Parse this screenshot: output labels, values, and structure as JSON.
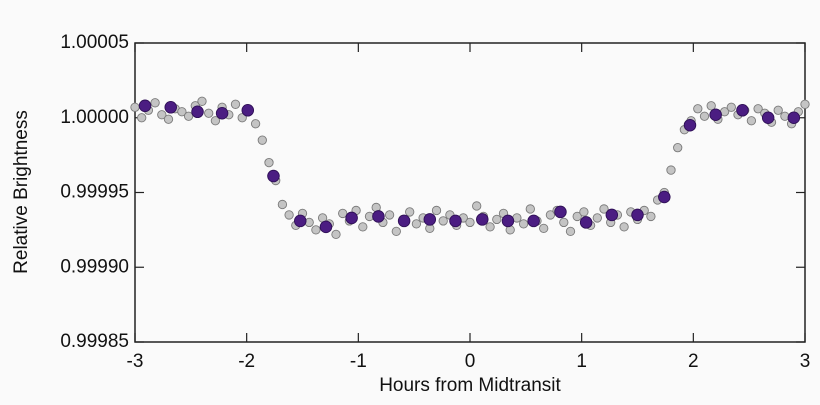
{
  "chart_data": {
    "type": "scatter",
    "xlabel": "Hours from Midtransit",
    "ylabel": "Relative Brightness",
    "xlim": [
      -3,
      3
    ],
    "xticks": [
      -3,
      -2,
      -1,
      0,
      1,
      2,
      3
    ],
    "ylim": [
      0.99985,
      1.00005
    ],
    "yticks": [
      0.99985,
      {
        "value": 0.9999,
        "label": "0.99990"
      },
      0.99995,
      {
        "value": 1,
        "label": "1.00000"
      },
      1.00005
    ],
    "series": [
      {
        "color": "#c4c4c4",
        "edge": "#7a7a7a",
        "x": [
          -3.0,
          -2.94,
          -2.88,
          -2.82,
          -2.76,
          -2.7,
          -2.64,
          -2.58,
          -2.52,
          -2.46,
          -2.4,
          -2.34,
          -2.28,
          -2.22,
          -2.16,
          -2.1,
          -2.04,
          -1.98,
          -1.92,
          -1.86,
          -1.8,
          -1.74,
          -1.68,
          -1.62,
          -1.56,
          -1.5,
          -1.44,
          -1.38,
          -1.32,
          -1.26,
          -1.2,
          -1.14,
          -1.08,
          -1.02,
          -0.96,
          -0.9,
          -0.84,
          -0.78,
          -0.72,
          -0.66,
          -0.6,
          -0.54,
          -0.48,
          -0.42,
          -0.36,
          -0.3,
          -0.24,
          -0.18,
          -0.12,
          -0.06,
          0.0,
          0.06,
          0.12,
          0.18,
          0.24,
          0.3,
          0.36,
          0.42,
          0.48,
          0.54,
          0.6,
          0.66,
          0.72,
          0.78,
          0.84,
          0.9,
          0.96,
          1.02,
          1.08,
          1.14,
          1.2,
          1.26,
          1.32,
          1.38,
          1.44,
          1.5,
          1.56,
          1.62,
          1.68,
          1.74,
          1.8,
          1.86,
          1.92,
          1.98,
          2.04,
          2.1,
          2.16,
          2.22,
          2.28,
          2.34,
          2.4,
          2.46,
          2.52,
          2.58,
          2.64,
          2.7,
          2.76,
          2.82,
          2.88,
          2.94,
          3.0
        ],
        "values": [
          1.000007,
          1.0,
          1.000005,
          1.00001,
          1.000002,
          0.999999,
          1.000006,
          1.000004,
          1.000001,
          1.000008,
          1.000011,
          1.000003,
          0.999998,
          1.000007,
          1.000002,
          1.000009,
          1.0,
          1.000005,
          0.999996,
          0.999985,
          0.99997,
          0.999958,
          0.999942,
          0.999935,
          0.999928,
          0.999936,
          0.99993,
          0.999925,
          0.999933,
          0.999929,
          0.999922,
          0.999936,
          0.999931,
          0.999938,
          0.999927,
          0.999934,
          0.99994,
          0.99993,
          0.999935,
          0.999924,
          0.999932,
          0.999937,
          0.999929,
          0.999933,
          0.999926,
          0.999938,
          0.999931,
          0.999935,
          0.999928,
          0.999933,
          0.99993,
          0.999941,
          0.999934,
          0.999927,
          0.999932,
          0.999936,
          0.999925,
          0.999933,
          0.999929,
          0.999939,
          0.999931,
          0.999926,
          0.999935,
          0.999938,
          0.99993,
          0.999924,
          0.999934,
          0.999937,
          0.999928,
          0.999933,
          0.999939,
          0.99993,
          0.999935,
          0.999927,
          0.999937,
          0.999932,
          0.999938,
          0.999934,
          0.999945,
          0.99995,
          0.999965,
          0.99998,
          0.999992,
          0.999998,
          1.000006,
          1.000001,
          1.000008,
          0.999999,
          1.000004,
          1.000007,
          1.000002,
          1.000005,
          0.999998,
          1.000006,
          1.000003,
          0.999997,
          1.000005,
          1.000001,
          0.999996,
          1.000004,
          1.000009
        ]
      },
      {
        "color": "#4b1d82",
        "edge": "#2e0f55",
        "x": [
          -2.91,
          -2.68,
          -2.44,
          -2.22,
          -1.99,
          -1.76,
          -1.52,
          -1.29,
          -1.06,
          -0.82,
          -0.59,
          -0.36,
          -0.13,
          0.11,
          0.34,
          0.57,
          0.81,
          1.04,
          1.27,
          1.5,
          1.74,
          1.97,
          2.2,
          2.44,
          2.67,
          2.9
        ],
        "values": [
          1.000008,
          1.000007,
          1.000004,
          1.000003,
          1.000005,
          0.999961,
          0.999931,
          0.999927,
          0.999933,
          0.999934,
          0.999931,
          0.999932,
          0.999931,
          0.999932,
          0.999931,
          0.999931,
          0.999937,
          0.99993,
          0.999935,
          0.999935,
          0.999947,
          0.999995,
          1.000002,
          1.000005,
          1.0,
          1.0
        ]
      }
    ]
  }
}
